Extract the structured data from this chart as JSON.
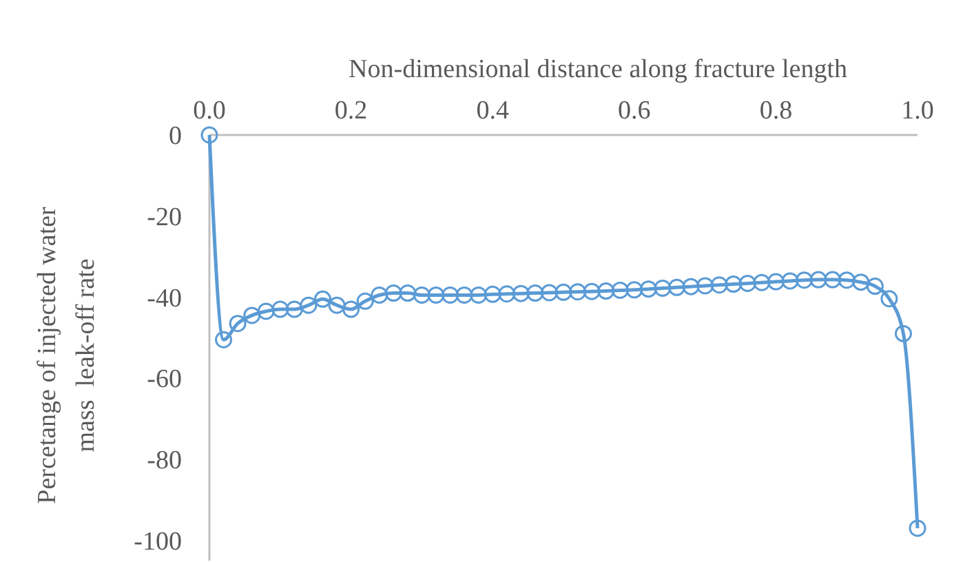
{
  "chart_data": {
    "type": "line",
    "xlabel": "Non-dimensional distance along fracture length",
    "ylabel": "Percetange of injected water\nmass  leak-off rate",
    "x": [
      0,
      0.02,
      0.04,
      0.06,
      0.08,
      0.1,
      0.12,
      0.14,
      0.16,
      0.18,
      0.2,
      0.22,
      0.24,
      0.26,
      0.28,
      0.3,
      0.32,
      0.34,
      0.36,
      0.38,
      0.4,
      0.42,
      0.44,
      0.46,
      0.48,
      0.5,
      0.52,
      0.54,
      0.56,
      0.58,
      0.6,
      0.62,
      0.64,
      0.66,
      0.68,
      0.7,
      0.72,
      0.74,
      0.76,
      0.78,
      0.8,
      0.82,
      0.84,
      0.86,
      0.88,
      0.9,
      0.92,
      0.94,
      0.96,
      0.98,
      1.0
    ],
    "series": [
      {
        "color": "#5b9bd5",
        "values": [
          0,
          -50.5,
          -46.5,
          -44.5,
          -43.5,
          -43,
          -43,
          -42,
          -40.5,
          -42,
          -43,
          -41,
          -39.5,
          -39,
          -39,
          -39.5,
          -39.5,
          -39.5,
          -39.5,
          -39.5,
          -39.3,
          -39.2,
          -39.1,
          -39,
          -38.9,
          -38.8,
          -38.7,
          -38.6,
          -38.5,
          -38.3,
          -38.2,
          -38,
          -37.8,
          -37.6,
          -37.4,
          -37.2,
          -37,
          -36.8,
          -36.6,
          -36.4,
          -36.2,
          -36,
          -35.8,
          -35.7,
          -35.7,
          -35.8,
          -36.3,
          -37.3,
          -40.4,
          -49,
          -97
        ]
      }
    ],
    "xlim": [
      0,
      1
    ],
    "xticks": [
      {
        "value": 0,
        "label": "0.0"
      },
      0.2,
      0.4,
      0.6,
      0.8,
      {
        "value": 1,
        "label": "1.0"
      }
    ],
    "ylim": [
      -105,
      0
    ],
    "yticks": [
      -100,
      -80,
      -60,
      -40,
      -20,
      0
    ],
    "marker": "circle",
    "line_style": "solid",
    "grid": false
  }
}
